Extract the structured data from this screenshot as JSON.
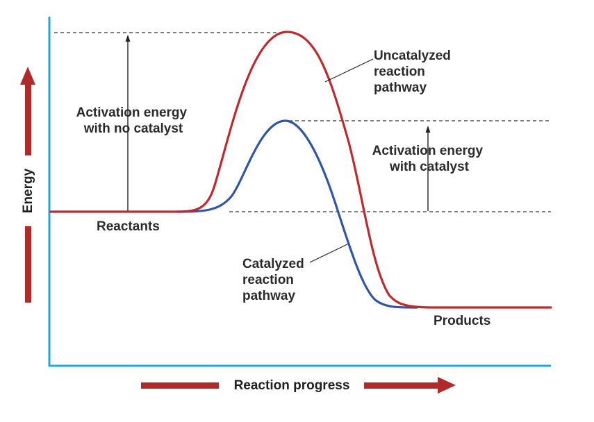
{
  "diagram": {
    "axes": {
      "y_label": "Energy",
      "x_label": "Reaction progress"
    },
    "curves": {
      "uncatalyzed": {
        "label_lines": [
          "Uncatalyzed",
          "reaction",
          "pathway"
        ]
      },
      "catalyzed": {
        "label_lines": [
          "Catalyzed",
          "reaction",
          "pathway"
        ]
      }
    },
    "annotations": {
      "activation_no_catalyst": [
        "Activation energy",
        "with no catalyst"
      ],
      "activation_with_catalyst": [
        "Activation energy",
        "with catalyst"
      ],
      "reactants": "Reactants",
      "products": "Products"
    },
    "colors": {
      "axis": "#1ea8e0",
      "uncatalyzed_curve": "#c0282d",
      "catalyzed_curve": "#2f56a6",
      "arrow": "#b02a2a",
      "dashed": "#333333",
      "text": "#2b2b2b"
    }
  }
}
